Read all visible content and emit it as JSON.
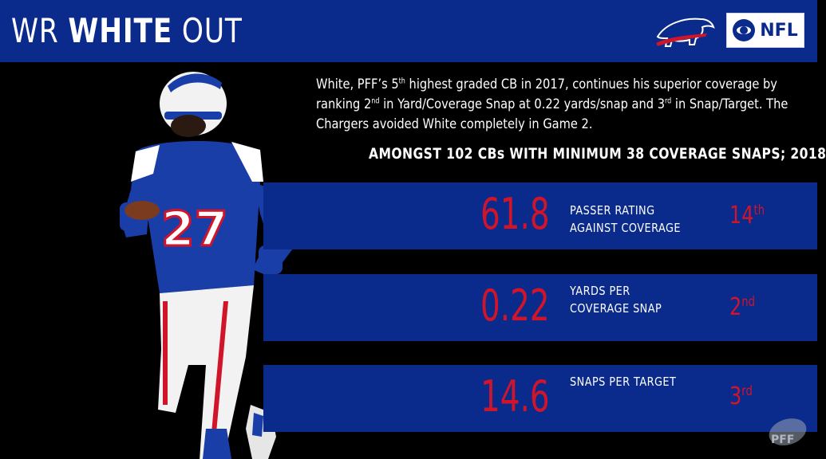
{
  "header": {
    "title_prefix": "WR ",
    "title_bold": "WHITE",
    "title_suffix": " OUT",
    "network_label": "NFL"
  },
  "description": {
    "text_1": "White, PFF’s 5",
    "sup_1": "th",
    "text_2": " highest graded CB in 2017, continues his superior coverage by ranking 2",
    "sup_2": "nd",
    "text_3": " in Yard/Coverage Snap at 0.22 yards/snap and 3",
    "sup_3": "rd",
    "text_4": " in Snap/Target.  The Chargers avoided White completely in Game 2."
  },
  "subheading": "AMONGST 102 CBs WITH MINIMUM 38 COVERAGE SNAPS; 2018",
  "stats": [
    {
      "value": "61.8",
      "label_line1": "PASSER RATING",
      "label_line2": "AGAINST COVERAGE",
      "rank_num": "14",
      "rank_suffix": "th"
    },
    {
      "value": "0.22",
      "label_line1": "YARDS PER",
      "label_line2": "COVERAGE SNAP",
      "rank_num": "2",
      "rank_suffix": "nd"
    },
    {
      "value": "14.6",
      "label_line1": "SNAPS PER TARGET",
      "label_line2": "",
      "rank_num": "3",
      "rank_suffix": "rd"
    }
  ],
  "colors": {
    "header_blue": "#0a2a8c",
    "band_blue": "#0a2a8c",
    "accent_red": "#d0152b",
    "background": "#000000"
  },
  "icons": {
    "team_logo": "buffalo-logo-icon",
    "network_logo": "cbs-nfl-logo-icon",
    "watermark": "pff-logo-icon"
  }
}
